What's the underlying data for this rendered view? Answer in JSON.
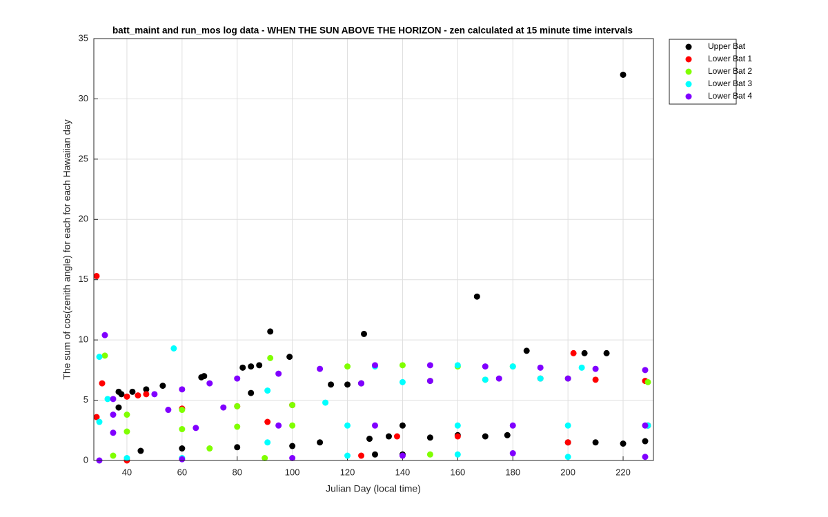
{
  "chart_data": {
    "type": "scatter",
    "title": "batt_maint and run_mos log data - WHEN THE SUN ABOVE THE HORIZON - zen calculated at 15 minute time intervals",
    "xlabel": "Julian Day (local time)",
    "ylabel": "The sum of cos(zenith angle) for each for each Hawaiian day",
    "xlim": [
      28,
      231
    ],
    "ylim": [
      0,
      35
    ],
    "xticks": [
      40,
      60,
      80,
      100,
      120,
      140,
      160,
      180,
      200,
      220
    ],
    "yticks": [
      0,
      5,
      10,
      15,
      20,
      25,
      30,
      35
    ],
    "grid": true,
    "legend": "outside-right",
    "series": [
      {
        "name": "Upper Bat",
        "color": "#000000",
        "x": [
          220,
          167,
          92,
          126,
          185,
          206,
          214,
          99,
          88,
          85,
          82,
          68,
          67,
          53,
          47,
          42,
          37,
          38,
          85,
          37,
          114,
          120,
          125,
          45,
          60,
          80,
          100,
          110,
          128,
          135,
          150,
          160,
          170,
          178,
          200,
          210,
          220,
          228,
          130,
          140,
          140,
          229
        ],
        "y": [
          32,
          13.6,
          10.7,
          10.5,
          9.1,
          8.9,
          8.9,
          8.6,
          7.9,
          7.8,
          7.7,
          7.0,
          6.9,
          6.2,
          5.9,
          5.7,
          5.7,
          5.5,
          5.6,
          4.4,
          6.3,
          6.3,
          6.4,
          0.8,
          1.0,
          1.1,
          1.2,
          1.5,
          1.8,
          2.0,
          1.9,
          2.1,
          2.0,
          2.1,
          1.5,
          1.5,
          1.4,
          1.6,
          0.5,
          0.5,
          2.9,
          2.9
        ]
      },
      {
        "name": "Lower Bat 1",
        "color": "#ff0000",
        "x": [
          29,
          31,
          29,
          202,
          91,
          40,
          44,
          47,
          60,
          80,
          100,
          190,
          210,
          228,
          160,
          138,
          40,
          125,
          200
        ],
        "y": [
          15.3,
          6.4,
          3.6,
          8.9,
          3.2,
          5.3,
          5.4,
          5.5,
          4.3,
          4.5,
          4.6,
          6.8,
          6.7,
          6.6,
          2.0,
          2.0,
          0.0,
          0.4,
          1.5
        ]
      },
      {
        "name": "Lower Bat 2",
        "color": "#80ff00",
        "x": [
          32,
          92,
          35,
          120,
          140,
          160,
          180,
          150,
          170,
          200,
          229,
          40,
          60,
          80,
          100,
          40,
          60,
          80,
          100,
          70,
          90,
          150
        ],
        "y": [
          8.7,
          8.5,
          0.4,
          7.8,
          7.9,
          7.8,
          7.8,
          6.6,
          6.7,
          6.8,
          6.5,
          3.8,
          4.2,
          4.5,
          4.6,
          2.4,
          2.6,
          2.8,
          2.9,
          1.0,
          0.2,
          0.5
        ]
      },
      {
        "name": "Lower Bat 3",
        "color": "#00ffff",
        "x": [
          30,
          57,
          30,
          91,
          91,
          33,
          112,
          130,
          160,
          180,
          205,
          140,
          170,
          190,
          120,
          160,
          200,
          229,
          40,
          60,
          120,
          160,
          200
        ],
        "y": [
          8.6,
          9.3,
          3.2,
          5.8,
          1.5,
          5.1,
          4.8,
          7.8,
          7.9,
          7.8,
          7.7,
          6.5,
          6.7,
          6.8,
          2.9,
          2.9,
          2.9,
          2.9,
          0.2,
          0.2,
          0.4,
          0.5,
          0.3
        ]
      },
      {
        "name": "Lower Bat 4",
        "color": "#8000ff",
        "x": [
          32,
          35,
          50,
          60,
          70,
          80,
          95,
          110,
          130,
          150,
          170,
          190,
          210,
          228,
          125,
          150,
          175,
          200,
          35,
          55,
          75,
          35,
          65,
          95,
          130,
          180,
          228,
          30,
          60,
          100,
          140,
          180,
          228
        ],
        "y": [
          10.4,
          5.1,
          5.5,
          5.9,
          6.4,
          6.8,
          7.2,
          7.6,
          7.9,
          7.9,
          7.8,
          7.7,
          7.6,
          7.5,
          6.4,
          6.6,
          6.8,
          6.8,
          3.8,
          4.2,
          4.4,
          2.3,
          2.7,
          2.9,
          2.9,
          2.9,
          2.9,
          0.0,
          0.1,
          0.2,
          0.4,
          0.6,
          0.3
        ]
      }
    ]
  }
}
